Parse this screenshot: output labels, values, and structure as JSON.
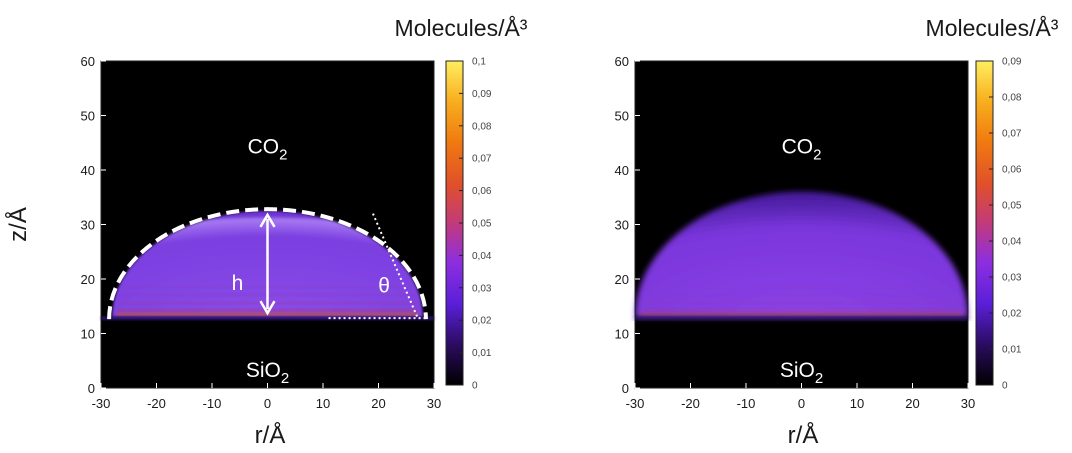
{
  "chart_data": [
    {
      "type": "heatmap",
      "title": "",
      "xlabel": "r/Å",
      "ylabel": "z/Å",
      "xlim": [
        -30,
        30
      ],
      "ylim": [
        0,
        60
      ],
      "xticks": [
        "-30",
        "-20",
        "-10",
        "0",
        "10",
        "20",
        "30"
      ],
      "yticks": [
        "0",
        "10",
        "20",
        "30",
        "40",
        "50",
        "60"
      ],
      "colorbar": {
        "label": "Molecules/Å³",
        "range": [
          0,
          0.1
        ],
        "ticks": [
          "0",
          "0,01",
          "0,02",
          "0,03",
          "0,04",
          "0,05",
          "0,06",
          "0,07",
          "0,08",
          "0,09",
          "0,1"
        ]
      },
      "region_labels": {
        "top": "CO",
        "bottom": "SiO",
        "subscript": "2"
      },
      "droplet": {
        "surface_z": 13,
        "apex_z": 32.5,
        "base_half_width_r": 28
      },
      "annotations": {
        "height": "h",
        "angle": "θ"
      }
    },
    {
      "type": "heatmap",
      "title": "",
      "xlabel": "r/Å",
      "ylabel": "",
      "xlim": [
        -30,
        30
      ],
      "ylim": [
        0,
        60
      ],
      "xticks": [
        "-30",
        "-20",
        "-10",
        "0",
        "10",
        "20",
        "30"
      ],
      "yticks": [
        "0",
        "10",
        "20",
        "30",
        "40",
        "50",
        "60"
      ],
      "colorbar": {
        "label": "Molecules/Å³",
        "range": [
          0,
          0.09
        ],
        "ticks": [
          "0",
          "0,01",
          "0,02",
          "0,03",
          "0,04",
          "0,05",
          "0,06",
          "0,07",
          "0,08",
          "0,09"
        ]
      },
      "region_labels": {
        "top": "CO",
        "bottom": "SiO",
        "subscript": "2"
      },
      "droplet": {
        "surface_z": 13,
        "apex_z": 36,
        "base_half_width_r": 30
      }
    }
  ]
}
